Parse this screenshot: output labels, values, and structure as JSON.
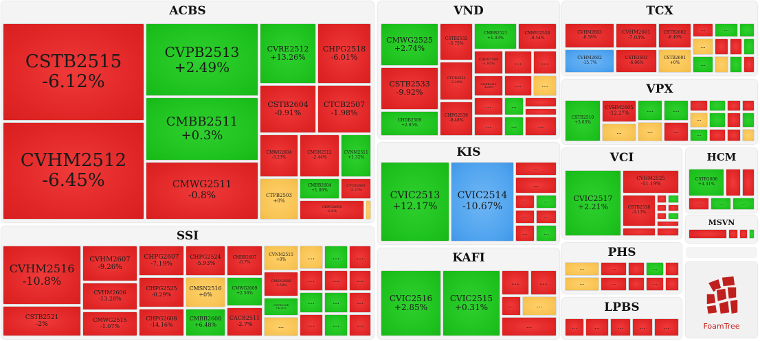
{
  "colors": {
    "red": "#e02525",
    "green": "#1ec21e",
    "yellow": "#f7c352",
    "blue": "#4da2ee"
  },
  "chart_data": {
    "type": "treemap",
    "groups": [
      {
        "name": "ACBS",
        "items": [
          {
            "label": "CSTB2515",
            "change": "-6.12%",
            "color": "red"
          },
          {
            "label": "CVHM2512",
            "change": "-6.45%",
            "color": "red"
          },
          {
            "label": "CVPB2513",
            "change": "+2.49%",
            "color": "green"
          },
          {
            "label": "CMBB2511",
            "change": "+0.3%",
            "color": "green"
          },
          {
            "label": "CMWG2511",
            "change": "-0.8%",
            "color": "red"
          },
          {
            "label": "CVRE2512",
            "change": "+13.26%",
            "color": "green"
          },
          {
            "label": "CHPG2518",
            "change": "-6.01%",
            "color": "red"
          },
          {
            "label": "CSTB2604",
            "change": "-0.91%",
            "color": "red"
          },
          {
            "label": "CTCB2507",
            "change": "-1.98%",
            "color": "red"
          },
          {
            "label": "CMWG2604",
            "change": "-3.23%",
            "color": "red"
          },
          {
            "label": "CMSN2512",
            "change": "-2.44%",
            "color": "red"
          },
          {
            "label": "CVNM2511",
            "change": "+1.32%",
            "color": "green"
          },
          {
            "label": "CTPB2503",
            "change": "+0%",
            "color": "yellow"
          },
          {
            "label": "CMBB2604",
            "change": "+1.08%",
            "color": "green"
          },
          {
            "label": "CTCB2603",
            "change": "-3.37%",
            "color": "red"
          },
          {
            "label": "CHPG2604",
            "change": "-0.8%",
            "color": "red"
          }
        ]
      },
      {
        "name": "SSI",
        "items": [
          {
            "label": "CVHM2516",
            "change": "-10.8%",
            "color": "red"
          },
          {
            "label": "CSTB2521",
            "change": "-2%",
            "color": "red"
          },
          {
            "label": "CVHM2607",
            "change": "-9.26%",
            "color": "red"
          },
          {
            "label": "CVHM2606",
            "change": "-13.28%",
            "color": "red"
          },
          {
            "label": "CMWG2515",
            "change": "-1.07%",
            "color": "red"
          },
          {
            "label": "CHPG2607",
            "change": "-7.19%",
            "color": "red"
          },
          {
            "label": "CHPG2525",
            "change": "-0.29%",
            "color": "red"
          },
          {
            "label": "CHPG2608",
            "change": "-14.16%",
            "color": "red"
          },
          {
            "label": "CHPG2524",
            "change": "-5.93%",
            "color": "red"
          },
          {
            "label": "CMSN2516",
            "change": "+0%",
            "color": "yellow"
          },
          {
            "label": "CMBB2608",
            "change": "+6.48%",
            "color": "green"
          },
          {
            "label": "CMBB2607",
            "change": "-0.7%",
            "color": "red"
          },
          {
            "label": "CMWG2609",
            "change": "+2.56%",
            "color": "green"
          },
          {
            "label": "CACB2511",
            "change": "-2.7%",
            "color": "red"
          },
          {
            "label": "CVNM2515",
            "change": "+0%",
            "color": "yellow"
          },
          {
            "label": "CMSN2605",
            "change": "-1.68%",
            "color": "red"
          },
          {
            "label": "CVPB2514",
            "change": "+4.31%",
            "color": "green"
          }
        ]
      },
      {
        "name": "VND",
        "items": [
          {
            "label": "CMWG2525",
            "change": "+2.74%",
            "color": "green"
          },
          {
            "label": "CSTB2533",
            "change": "-9.92%",
            "color": "red"
          },
          {
            "label": "CHDB2509",
            "change": "+2.85%",
            "color": "green"
          },
          {
            "label": "CSTB2532",
            "change": "-5.75%",
            "color": "red"
          },
          {
            "label": "CTCB2521",
            "change": "-3.29%",
            "color": "red"
          },
          {
            "label": "CHPG2539",
            "change": "-0.48%",
            "color": "red"
          },
          {
            "label": "CMBB2521",
            "change": "+1.03%",
            "color": "green"
          },
          {
            "label": "CMWG2524",
            "change": "-0.54%",
            "color": "red"
          },
          {
            "label": "CHDB2508",
            "change": "-1.95%",
            "color": "red"
          },
          {
            "label": "CMBB2518",
            "change": "-4.88%",
            "color": "red"
          }
        ]
      },
      {
        "name": "KIS",
        "items": [
          {
            "label": "CVIC2513",
            "change": "+12.17%",
            "color": "green"
          },
          {
            "label": "CVIC2514",
            "change": "-10.67%",
            "color": "blue"
          }
        ]
      },
      {
        "name": "KAFI",
        "items": [
          {
            "label": "CVIC2516",
            "change": "+2.85%",
            "color": "green"
          },
          {
            "label": "CVIC2515",
            "change": "+0.31%",
            "color": "green"
          }
        ]
      },
      {
        "name": "TCX",
        "items": [
          {
            "label": "CVHM2603",
            "change": "-8.58%",
            "color": "red"
          },
          {
            "label": "CVHM2601",
            "change": "-7.03%",
            "color": "red"
          },
          {
            "label": "CSTB2602",
            "change": "-8.49%",
            "color": "red"
          },
          {
            "label": "CVHM2602",
            "change": "-15.7%",
            "color": "blue"
          },
          {
            "label": "CSTB2603",
            "change": "-6.06%",
            "color": "red"
          },
          {
            "label": "CSTB2601",
            "change": "+0%",
            "color": "yellow"
          }
        ]
      },
      {
        "name": "VPX",
        "items": [
          {
            "label": "CSTB2510",
            "change": "+3.63%",
            "color": "green"
          },
          {
            "label": "CVHM2605",
            "change": "-12.27%",
            "color": "red"
          }
        ]
      },
      {
        "name": "VCI",
        "items": [
          {
            "label": "CVIC2517",
            "change": "+2.21%",
            "color": "green"
          },
          {
            "label": "CVHM2525",
            "change": "-11.19%",
            "color": "red"
          },
          {
            "label": "CSTB2538",
            "change": "-3.13%",
            "color": "red"
          }
        ]
      },
      {
        "name": "HCM",
        "items": [
          {
            "label": "CSTB2606",
            "change": "+4.31%",
            "color": "green"
          }
        ]
      },
      {
        "name": "MSVN",
        "items": []
      },
      {
        "name": "PHS",
        "items": []
      },
      {
        "name": "LPBS",
        "items": []
      }
    ],
    "more_label": "...",
    "brand": "FoamTree"
  }
}
